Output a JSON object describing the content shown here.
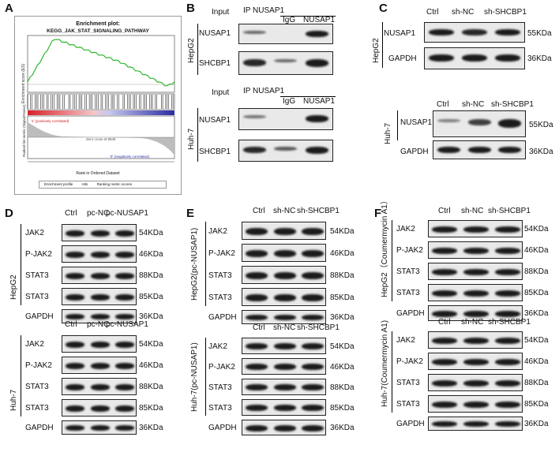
{
  "panels": {
    "A": "A",
    "B": "B",
    "C": "C",
    "D": "D",
    "E": "E",
    "F": "F"
  },
  "gsea": {
    "title": "Enrichment plot:",
    "pathway": "KEGG_JAK_STAT_SIGNALING_PATHWAY",
    "ylabel_top": "Enrichment score (ES)",
    "ylabel_bottom": "Ranked list metric (Signal2Noise)",
    "xlabel": "Rank in Ordered Dataset",
    "pos_label": "'1' (positively correlated)",
    "neg_label": "'0' (negatively correlated)",
    "zero_cross": "Zero cross at 9845",
    "legend": [
      "Enrichment profile",
      "Hits",
      "Ranking metric scores"
    ],
    "yticks": [
      "0.4",
      "0.3",
      "0.2",
      "0.1",
      "0.0",
      "-0.1"
    ],
    "xticks": [
      "0",
      "2,500",
      "5,000",
      "7,500",
      "10,000",
      "12,500",
      "15,000",
      "17,500",
      "20,000"
    ],
    "chart_data": {
      "type": "line",
      "ylim": [
        -0.1,
        0.45
      ],
      "xlabel": "Rank in Ordered Dataset",
      "ylabel": "Enrichment score (ES)"
    }
  },
  "B": {
    "ip_label": "IP NUSAP1",
    "input": "Input",
    "igg": "IgG",
    "nusap1": "NUSAP1",
    "rows": [
      "NUSAP1",
      "SHCBP1"
    ],
    "cells": [
      "HepG2",
      "Huh-7"
    ]
  },
  "C": {
    "cols": [
      "Ctrl",
      "sh-NC",
      "sh-SHCBP1"
    ],
    "rows": [
      "NUSAP1",
      "GAPDH"
    ],
    "sizes": [
      "55KDa",
      "36KDa"
    ],
    "cells": [
      "HepG2",
      "Huh-7"
    ]
  },
  "D": {
    "cols": [
      "Ctrl",
      "pc-NC",
      "pc-NUSAP1"
    ],
    "rows": [
      "JAK2",
      "P-JAK2",
      "STAT3",
      "STAT3",
      "GAPDH"
    ],
    "sizes": [
      "54KDa",
      "46KDa",
      "88KDa",
      "85KDa",
      "36KDa"
    ],
    "cells": [
      "HepG2",
      "Huh-7"
    ]
  },
  "E": {
    "cols": [
      "Ctrl",
      "sh-NC",
      "sh-SHCBP1"
    ],
    "rows": [
      "JAK2",
      "P-JAK2",
      "STAT3",
      "STAT3",
      "GAPDH"
    ],
    "sizes": [
      "54KDa",
      "46KDa",
      "88KDa",
      "85KDa",
      "36KDa"
    ],
    "cells": [
      "HepG2(pc-NUSAP1)",
      "Huh-7(pc-NUSAP1)"
    ]
  },
  "F": {
    "cols": [
      "Ctrl",
      "sh-NC",
      "sh-SHCBP1"
    ],
    "rows": [
      "JAK2",
      "P-JAK2",
      "STAT3",
      "STAT3",
      "GAPDH"
    ],
    "sizes": [
      "54KDa",
      "46KDa",
      "88KDa",
      "85KDa",
      "36KDa"
    ],
    "cells": [
      "HepG2（Coumermycin A1）",
      "Huh-7(Coumermycin A1)"
    ]
  }
}
